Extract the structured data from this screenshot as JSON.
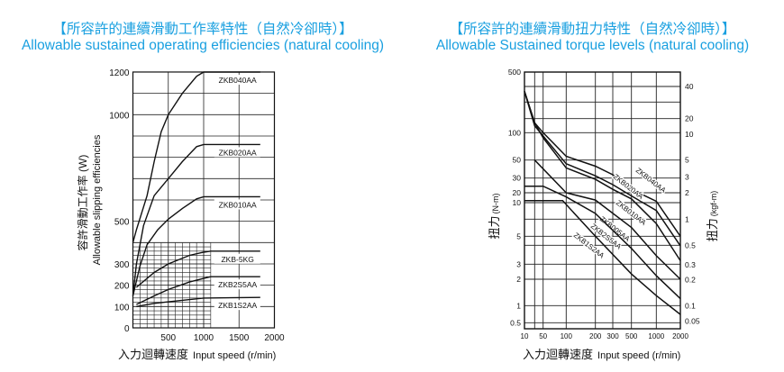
{
  "title_color": "#1aa0e0",
  "chart_data": [
    {
      "type": "line",
      "title_zh": "【所容許的連續滑動工作率特性（自然冷卻時）】",
      "title": "Allowable sustained operating efficiencies (natural cooling)",
      "xlabel_zh": "入力迴轉速度",
      "xlabel": "Input speed (r/min)",
      "ylabel_zh": "容許滑動工作率 (W)",
      "ylabel": "Allowable slipping efficiencies",
      "xlim": [
        0,
        2000
      ],
      "ylim": [
        0,
        1200
      ],
      "xticks": [
        "500",
        "1000",
        "1500",
        "2000"
      ],
      "yticks": [
        "0",
        "100",
        "200",
        "300",
        "500",
        "1000",
        "1200"
      ],
      "grid": true,
      "series": [
        {
          "name": "ZKB040AA",
          "points": [
            [
              0,
              400
            ],
            [
              50,
              460
            ],
            [
              200,
              620
            ],
            [
              300,
              780
            ],
            [
              400,
              920
            ],
            [
              500,
              1000
            ],
            [
              700,
              1100
            ],
            [
              900,
              1180
            ],
            [
              1000,
              1200
            ],
            [
              1800,
              1200
            ]
          ]
        },
        {
          "name": "ZKB020AA",
          "points": [
            [
              0,
              150
            ],
            [
              50,
              300
            ],
            [
              150,
              480
            ],
            [
              300,
              620
            ],
            [
              500,
              700
            ],
            [
              700,
              780
            ],
            [
              900,
              850
            ],
            [
              1000,
              860
            ],
            [
              1800,
              860
            ]
          ]
        },
        {
          "name": "ZKB010AA",
          "points": [
            [
              0,
              150
            ],
            [
              100,
              290
            ],
            [
              200,
              390
            ],
            [
              350,
              460
            ],
            [
              500,
              510
            ],
            [
              700,
              560
            ],
            [
              900,
              605
            ],
            [
              1000,
              615
            ],
            [
              1800,
              615
            ]
          ]
        },
        {
          "name": "ZKB-5KG",
          "points": [
            [
              50,
              190
            ],
            [
              300,
              260
            ],
            [
              500,
              300
            ],
            [
              800,
              340
            ],
            [
              1000,
              355
            ],
            [
              1100,
              360
            ],
            [
              1800,
              360
            ]
          ]
        },
        {
          "name": "ZKB2S5AA",
          "points": [
            [
              50,
              110
            ],
            [
              300,
              150
            ],
            [
              500,
              180
            ],
            [
              800,
              215
            ],
            [
              1000,
              232
            ],
            [
              1100,
              240
            ],
            [
              1800,
              240
            ]
          ]
        },
        {
          "name": "ZKB1S2AA",
          "points": [
            [
              50,
              100
            ],
            [
              300,
              115
            ],
            [
              500,
              122
            ],
            [
              1000,
              140
            ],
            [
              1800,
              143
            ]
          ]
        }
      ]
    },
    {
      "type": "line",
      "title_zh": "【所容許的連續滑動扭力特性（自然冷卻時）】",
      "title": "Allowable Sustained torque levels (natural cooling)",
      "xlabel_zh": "入力迴轉速度",
      "xlabel": "Input speed (r/min)",
      "ylabel_zh": "扭力",
      "ylabel": "(N-m)",
      "y2label_zh": "扭力",
      "y2label": "(kgf-m)",
      "xscale": "log",
      "yscale": "log",
      "xlim": [
        10,
        2000
      ],
      "ylim": [
        0.4,
        500
      ],
      "xticks": [
        "10",
        "50",
        "100",
        "200",
        "300",
        "500",
        "1000",
        "2000"
      ],
      "yticks": [
        "500",
        "100",
        "50",
        "30",
        "20",
        "10",
        "5",
        "3",
        "2",
        "1",
        "0.5"
      ],
      "y2ticks": [
        "40",
        "20",
        "10",
        "5",
        "3",
        "2",
        "1",
        "0.5",
        "0.3",
        "0.2",
        "0.1",
        "0.05"
      ],
      "grid": true,
      "series": [
        {
          "name": "ZKB040AA",
          "points": [
            [
              10,
              300
            ],
            [
              30,
              130
            ],
            [
              50,
              100
            ],
            [
              100,
              55
            ],
            [
              200,
              42
            ],
            [
              300,
              33
            ],
            [
              500,
              22
            ],
            [
              1000,
              11
            ],
            [
              2000,
              5
            ]
          ]
        },
        {
          "name": "ZKB020AA",
          "points": [
            [
              10,
              300
            ],
            [
              30,
              120
            ],
            [
              50,
              92
            ],
            [
              100,
              45
            ],
            [
              200,
              32
            ],
            [
              300,
              25
            ],
            [
              500,
              16
            ],
            [
              1000,
              8.5
            ],
            [
              2000,
              4.2
            ]
          ]
        },
        {
          "name": "ZKB010AA",
          "points": [
            [
              10,
              300
            ],
            [
              30,
              130
            ],
            [
              50,
              88
            ],
            [
              100,
              40
            ],
            [
              200,
              29
            ],
            [
              300,
              22
            ],
            [
              500,
              13
            ],
            [
              1000,
              6.5
            ],
            [
              2000,
              3.2
            ]
          ]
        },
        {
          "name": "ZKB005AA",
          "points": [
            [
              30,
              50
            ],
            [
              100,
              20
            ],
            [
              200,
              12
            ],
            [
              500,
              6
            ],
            [
              1000,
              3.5
            ],
            [
              2000,
              2
            ]
          ]
        },
        {
          "name": "ZKB2S5AA",
          "points": [
            [
              10,
              24
            ],
            [
              50,
              24
            ],
            [
              100,
              15
            ],
            [
              200,
              8
            ],
            [
              500,
              4
            ],
            [
              1000,
              2.2
            ],
            [
              2000,
              1.2
            ]
          ]
        },
        {
          "name": "ZKB1S2AA",
          "points": [
            [
              10,
              11.5
            ],
            [
              90,
              11.5
            ],
            [
              200,
              5
            ],
            [
              500,
              2.3
            ],
            [
              1000,
              1.3
            ],
            [
              2000,
              0.7
            ]
          ]
        }
      ]
    }
  ]
}
